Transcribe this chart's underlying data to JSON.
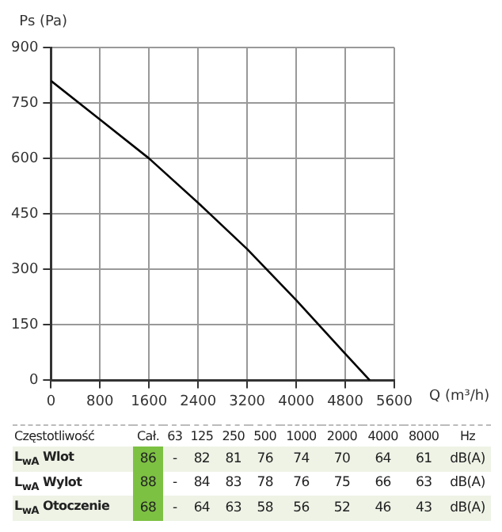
{
  "chart_data": [
    {
      "type": "line",
      "xlabel": "Q (m³/h)",
      "ylabel": "Ps (Pa)",
      "x": [
        0,
        800,
        1600,
        2400,
        3200,
        4000,
        4800,
        5200
      ],
      "values": [
        810,
        705,
        600,
        480,
        355,
        217,
        72,
        0
      ],
      "color": "#000000",
      "xlim": [
        0,
        5600
      ],
      "xticks": [
        0,
        800,
        1600,
        2400,
        3200,
        4000,
        4800,
        5600
      ],
      "ylim": [
        0,
        900
      ],
      "yticks": [
        0,
        150,
        300,
        450,
        600,
        750,
        900
      ],
      "grid": true,
      "legend": false,
      "marker": "none",
      "line_style": "solid"
    },
    {
      "type": "other",
      "xlabel": "Częstotliwość",
      "categories": [
        "Cał.",
        "63",
        "125",
        "250",
        "500",
        "1000",
        "2000",
        "4000",
        "8000",
        "Hz"
      ],
      "y_categories": [
        "L$_{wA}$ Wlot",
        "L$_{wA}$ Wylot",
        "L$_{wA}$ Otoczenie"
      ],
      "cell_labels": [
        [
          "86",
          "-",
          "82",
          "81",
          "76",
          "74",
          "70",
          "64",
          "61",
          "dB(A)"
        ],
        [
          "88",
          "-",
          "84",
          "83",
          "78",
          "76",
          "75",
          "66",
          "63",
          "dB(A)"
        ],
        [
          "68",
          "-",
          "64",
          "63",
          "58",
          "56",
          "52",
          "46",
          "43",
          "dB(A)"
        ]
      ]
    }
  ]
}
